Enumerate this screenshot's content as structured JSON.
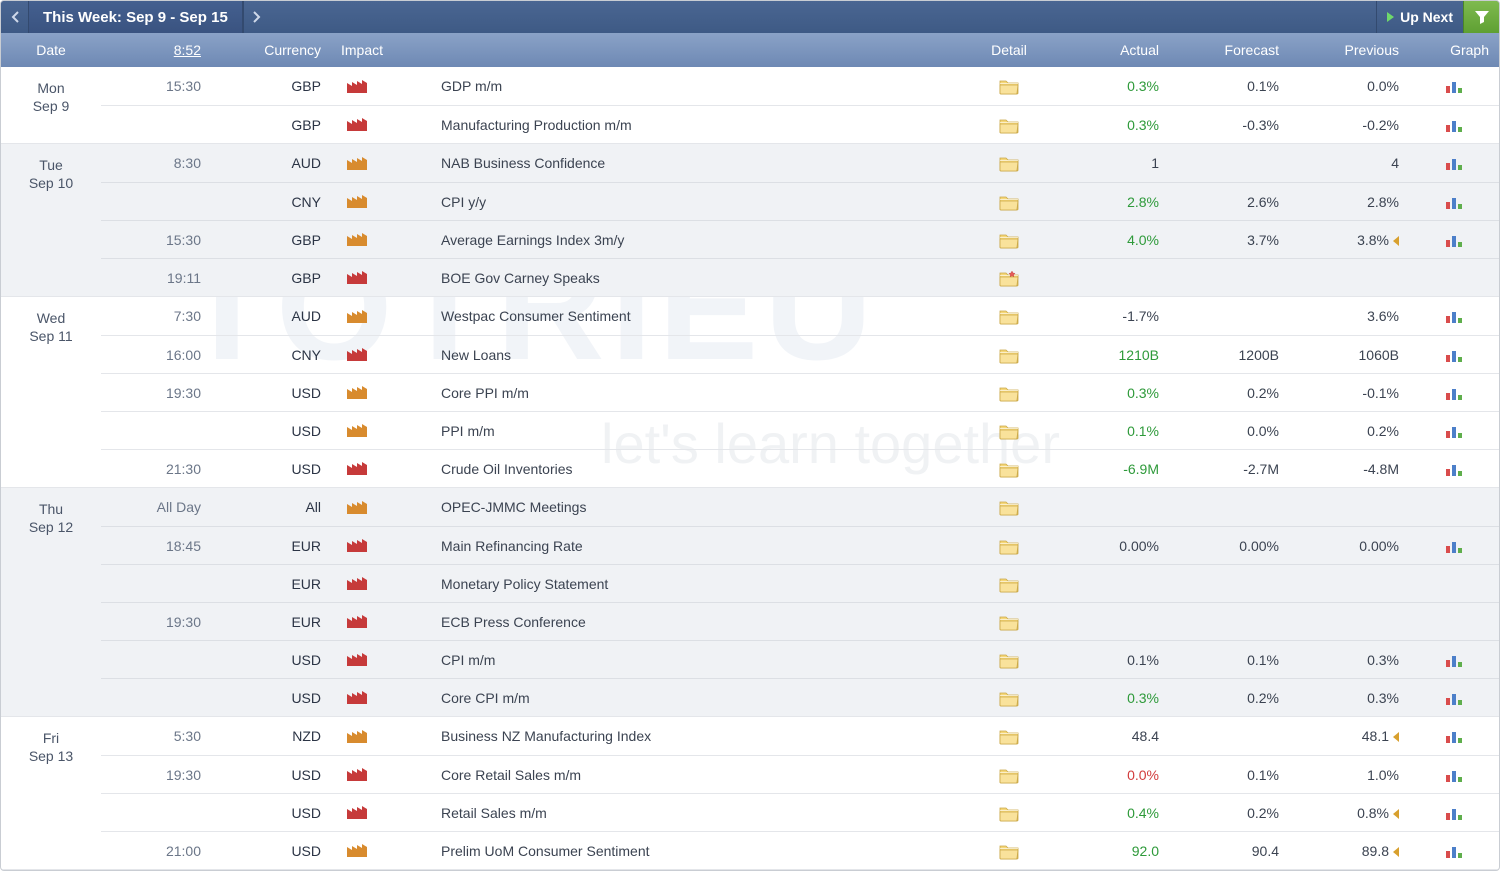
{
  "colors": {
    "topbar_bg_top": "#4a6692",
    "topbar_bg_bottom": "#3e5a85",
    "header_bg_top": "#8aa2c7",
    "header_bg_bottom": "#6e89b4",
    "alt_row_bg": "#f0f2f5",
    "text_main": "#3b4351",
    "text_muted": "#6b7688",
    "impact_high": "#c63a3a",
    "impact_medium": "#d88b2e",
    "actual_better": "#2e9a3a",
    "actual_worse": "#d23c3c",
    "filter_btn": "#6fae3e"
  },
  "nav": {
    "week_label": "This Week: Sep 9 - Sep 15",
    "up_next": "Up Next"
  },
  "headers": {
    "date": "Date",
    "time": "8:52",
    "currency": "Currency",
    "impact": "Impact",
    "detail": "Detail",
    "actual": "Actual",
    "forecast": "Forecast",
    "previous": "Previous",
    "graph": "Graph"
  },
  "days": [
    {
      "dow": "Mon",
      "md": "Sep 9",
      "alt": false,
      "events": [
        {
          "time": "15:30",
          "currency": "GBP",
          "impact": "high",
          "event": "GDP m/m",
          "detail": true,
          "actual": "0.3%",
          "actual_tone": "green",
          "forecast": "0.1%",
          "previous": "0.0%",
          "rev": false,
          "graph": true
        },
        {
          "time": "",
          "currency": "GBP",
          "impact": "high",
          "event": "Manufacturing Production m/m",
          "detail": true,
          "actual": "0.3%",
          "actual_tone": "green",
          "forecast": "-0.3%",
          "previous": "-0.2%",
          "rev": false,
          "graph": true
        }
      ]
    },
    {
      "dow": "Tue",
      "md": "Sep 10",
      "alt": true,
      "events": [
        {
          "time": "8:30",
          "currency": "AUD",
          "impact": "medium",
          "event": "NAB Business Confidence",
          "detail": true,
          "actual": "1",
          "actual_tone": "normal",
          "forecast": "",
          "previous": "4",
          "rev": false,
          "graph": true
        },
        {
          "time": "",
          "currency": "CNY",
          "impact": "medium",
          "event": "CPI y/y",
          "detail": true,
          "actual": "2.8%",
          "actual_tone": "green",
          "forecast": "2.6%",
          "previous": "2.8%",
          "rev": false,
          "graph": true
        },
        {
          "time": "15:30",
          "currency": "GBP",
          "impact": "medium",
          "event": "Average Earnings Index 3m/y",
          "detail": true,
          "actual": "4.0%",
          "actual_tone": "green",
          "forecast": "3.7%",
          "previous": "3.8%",
          "rev": true,
          "graph": true
        },
        {
          "time": "19:11",
          "currency": "GBP",
          "impact": "high",
          "event": "BOE Gov Carney Speaks",
          "detail": true,
          "detail_star": true,
          "actual": "",
          "actual_tone": "normal",
          "forecast": "",
          "previous": "",
          "rev": false,
          "graph": false
        }
      ]
    },
    {
      "dow": "Wed",
      "md": "Sep 11",
      "alt": false,
      "events": [
        {
          "time": "7:30",
          "currency": "AUD",
          "impact": "medium",
          "event": "Westpac Consumer Sentiment",
          "detail": true,
          "actual": "-1.7%",
          "actual_tone": "normal",
          "forecast": "",
          "previous": "3.6%",
          "rev": false,
          "graph": true
        },
        {
          "time": "16:00",
          "currency": "CNY",
          "impact": "high",
          "event": "New Loans",
          "detail": true,
          "actual": "1210B",
          "actual_tone": "green",
          "forecast": "1200B",
          "previous": "1060B",
          "rev": false,
          "graph": true
        },
        {
          "time": "19:30",
          "currency": "USD",
          "impact": "medium",
          "event": "Core PPI m/m",
          "detail": true,
          "actual": "0.3%",
          "actual_tone": "green",
          "forecast": "0.2%",
          "previous": "-0.1%",
          "rev": false,
          "graph": true
        },
        {
          "time": "",
          "currency": "USD",
          "impact": "medium",
          "event": "PPI m/m",
          "detail": true,
          "actual": "0.1%",
          "actual_tone": "green",
          "forecast": "0.0%",
          "previous": "0.2%",
          "rev": false,
          "graph": true
        },
        {
          "time": "21:30",
          "currency": "USD",
          "impact": "high",
          "event": "Crude Oil Inventories",
          "detail": true,
          "actual": "-6.9M",
          "actual_tone": "green",
          "forecast": "-2.7M",
          "previous": "-4.8M",
          "rev": false,
          "graph": true
        }
      ]
    },
    {
      "dow": "Thu",
      "md": "Sep 12",
      "alt": true,
      "events": [
        {
          "time": "All Day",
          "currency": "All",
          "impact": "medium",
          "event": "OPEC-JMMC Meetings",
          "detail": true,
          "actual": "",
          "actual_tone": "normal",
          "forecast": "",
          "previous": "",
          "rev": false,
          "graph": false
        },
        {
          "time": "18:45",
          "currency": "EUR",
          "impact": "high",
          "event": "Main Refinancing Rate",
          "detail": true,
          "actual": "0.00%",
          "actual_tone": "normal",
          "forecast": "0.00%",
          "previous": "0.00%",
          "rev": false,
          "graph": true
        },
        {
          "time": "",
          "currency": "EUR",
          "impact": "high",
          "event": "Monetary Policy Statement",
          "detail": true,
          "actual": "",
          "actual_tone": "normal",
          "forecast": "",
          "previous": "",
          "rev": false,
          "graph": false
        },
        {
          "time": "19:30",
          "currency": "EUR",
          "impact": "high",
          "event": "ECB Press Conference",
          "detail": true,
          "actual": "",
          "actual_tone": "normal",
          "forecast": "",
          "previous": "",
          "rev": false,
          "graph": false
        },
        {
          "time": "",
          "currency": "USD",
          "impact": "high",
          "event": "CPI m/m",
          "detail": true,
          "actual": "0.1%",
          "actual_tone": "normal",
          "forecast": "0.1%",
          "previous": "0.3%",
          "rev": false,
          "graph": true
        },
        {
          "time": "",
          "currency": "USD",
          "impact": "high",
          "event": "Core CPI m/m",
          "detail": true,
          "actual": "0.3%",
          "actual_tone": "green",
          "forecast": "0.2%",
          "previous": "0.3%",
          "rev": false,
          "graph": true
        }
      ]
    },
    {
      "dow": "Fri",
      "md": "Sep 13",
      "alt": false,
      "events": [
        {
          "time": "5:30",
          "currency": "NZD",
          "impact": "medium",
          "event": "Business NZ Manufacturing Index",
          "detail": true,
          "actual": "48.4",
          "actual_tone": "normal",
          "forecast": "",
          "previous": "48.1",
          "rev": true,
          "graph": true
        },
        {
          "time": "19:30",
          "currency": "USD",
          "impact": "high",
          "event": "Core Retail Sales m/m",
          "detail": true,
          "actual": "0.0%",
          "actual_tone": "red",
          "forecast": "0.1%",
          "previous": "1.0%",
          "rev": false,
          "graph": true
        },
        {
          "time": "",
          "currency": "USD",
          "impact": "high",
          "event": "Retail Sales m/m",
          "detail": true,
          "actual": "0.4%",
          "actual_tone": "green",
          "forecast": "0.2%",
          "previous": "0.8%",
          "rev": true,
          "graph": true
        },
        {
          "time": "21:00",
          "currency": "USD",
          "impact": "medium",
          "event": "Prelim UoM Consumer Sentiment",
          "detail": true,
          "actual": "92.0",
          "actual_tone": "green",
          "forecast": "90.4",
          "previous": "89.8",
          "rev": true,
          "graph": true
        }
      ]
    }
  ]
}
